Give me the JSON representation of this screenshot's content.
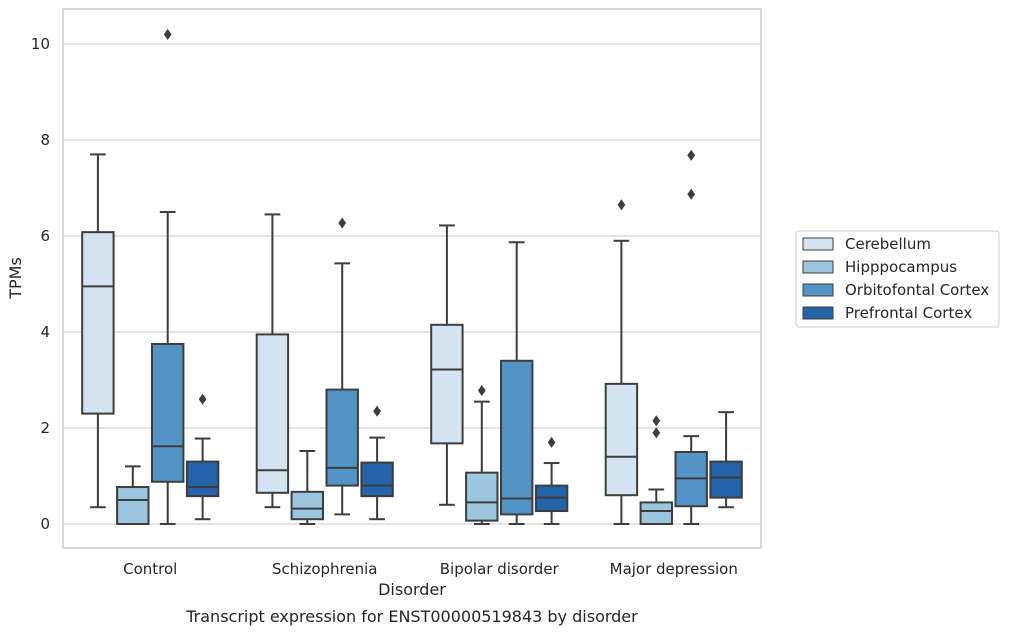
{
  "chart_data": {
    "type": "box",
    "title": "",
    "caption": "Transcript expression for ENST00000519843 by disorder",
    "xlabel": "Disorder",
    "ylabel": "TPMs",
    "ylim": [
      -0.5,
      10.75
    ],
    "yticks": [
      0,
      2,
      4,
      6,
      8,
      10
    ],
    "grid": "horizontal",
    "legend_position": "right",
    "categories": [
      "Control",
      "Schizophrenia",
      "Bipolar disorder",
      "Major depression"
    ],
    "series": [
      {
        "name": "Cerebellum",
        "color": "#d4e3f2",
        "boxes": [
          {
            "whislo": 0.35,
            "q1": 2.3,
            "med": 4.95,
            "q3": 6.08,
            "whishi": 7.7,
            "fliers": []
          },
          {
            "whislo": 0.35,
            "q1": 0.65,
            "med": 1.12,
            "q3": 3.95,
            "whishi": 6.45,
            "fliers": []
          },
          {
            "whislo": 0.4,
            "q1": 1.68,
            "med": 3.22,
            "q3": 4.15,
            "whishi": 6.22,
            "fliers": []
          },
          {
            "whislo": 0.0,
            "q1": 0.6,
            "med": 1.4,
            "q3": 2.92,
            "whishi": 5.9,
            "fliers": [
              6.65
            ]
          }
        ]
      },
      {
        "name": "Hipppocampus",
        "color": "#9cc5de",
        "boxes": [
          {
            "whislo": 0.0,
            "q1": 0.0,
            "med": 0.5,
            "q3": 0.77,
            "whishi": 1.2,
            "fliers": []
          },
          {
            "whislo": 0.0,
            "q1": 0.1,
            "med": 0.32,
            "q3": 0.67,
            "whishi": 1.52,
            "fliers": []
          },
          {
            "whislo": 0.0,
            "q1": 0.07,
            "med": 0.45,
            "q3": 1.07,
            "whishi": 2.55,
            "fliers": [
              2.78
            ]
          },
          {
            "whislo": 0.0,
            "q1": 0.0,
            "med": 0.27,
            "q3": 0.45,
            "whishi": 0.72,
            "fliers": [
              1.9,
              2.15
            ]
          }
        ]
      },
      {
        "name": "Orbitofontal Cortex",
        "color": "#5394c4",
        "boxes": [
          {
            "whislo": 0.0,
            "q1": 0.88,
            "med": 1.62,
            "q3": 3.75,
            "whishi": 6.5,
            "fliers": [
              10.2
            ]
          },
          {
            "whislo": 0.2,
            "q1": 0.8,
            "med": 1.17,
            "q3": 2.8,
            "whishi": 5.43,
            "fliers": [
              6.27
            ]
          },
          {
            "whislo": 0.0,
            "q1": 0.2,
            "med": 0.53,
            "q3": 3.4,
            "whishi": 5.87,
            "fliers": []
          },
          {
            "whislo": 0.0,
            "q1": 0.37,
            "med": 0.95,
            "q3": 1.5,
            "whishi": 1.83,
            "fliers": [
              6.87,
              7.68
            ]
          }
        ]
      },
      {
        "name": "Prefrontal Cortex",
        "color": "#2463a8",
        "boxes": [
          {
            "whislo": 0.1,
            "q1": 0.58,
            "med": 0.77,
            "q3": 1.3,
            "whishi": 1.78,
            "fliers": [
              2.6
            ]
          },
          {
            "whislo": 0.1,
            "q1": 0.58,
            "med": 0.8,
            "q3": 1.28,
            "whishi": 1.8,
            "fliers": [
              2.35
            ]
          },
          {
            "whislo": 0.0,
            "q1": 0.27,
            "med": 0.55,
            "q3": 0.8,
            "whishi": 1.27,
            "fliers": [
              1.7
            ]
          },
          {
            "whislo": 0.35,
            "q1": 0.55,
            "med": 0.97,
            "q3": 1.3,
            "whishi": 2.33,
            "fliers": []
          }
        ]
      }
    ]
  }
}
